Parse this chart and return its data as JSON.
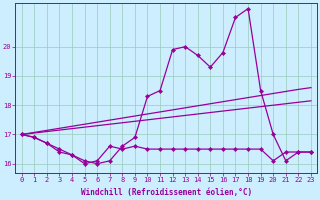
{
  "xlabel": "Windchill (Refroidissement éolien,°C)",
  "background_color": "#cceeff",
  "line_color": "#990099",
  "x": [
    0,
    1,
    2,
    3,
    4,
    5,
    6,
    7,
    8,
    9,
    10,
    11,
    12,
    13,
    14,
    15,
    16,
    17,
    18,
    19,
    20,
    21,
    22,
    23
  ],
  "line_main": [
    17.0,
    16.9,
    16.7,
    16.5,
    16.3,
    16.1,
    16.0,
    16.1,
    16.6,
    16.9,
    18.3,
    18.5,
    19.9,
    20.0,
    19.7,
    19.3,
    19.8,
    21.0,
    21.3,
    18.5,
    17.0,
    16.1,
    16.4,
    16.4
  ],
  "line_low": [
    17.0,
    16.9,
    16.7,
    16.4,
    16.3,
    16.0,
    16.1,
    16.6,
    16.5,
    16.6,
    16.5,
    16.5,
    16.5,
    16.5,
    16.5,
    16.5,
    16.5,
    16.5,
    16.5,
    16.5,
    16.1,
    16.4,
    16.4,
    16.4
  ],
  "line_trend1": [
    17.0,
    17.05,
    17.1,
    17.15,
    17.2,
    17.25,
    17.3,
    17.35,
    17.4,
    17.45,
    17.5,
    17.55,
    17.6,
    17.65,
    17.7,
    17.75,
    17.8,
    17.85,
    17.9,
    17.95,
    18.0,
    18.05,
    18.1,
    18.15
  ],
  "line_trend2": [
    17.0,
    17.07,
    17.14,
    17.21,
    17.28,
    17.35,
    17.42,
    17.49,
    17.56,
    17.63,
    17.7,
    17.77,
    17.84,
    17.91,
    17.98,
    18.05,
    18.12,
    18.19,
    18.26,
    18.33,
    18.4,
    18.47,
    18.54,
    18.6
  ],
  "ylim": [
    15.7,
    21.5
  ],
  "xlim": [
    -0.5,
    23.5
  ],
  "yticks": [
    16,
    17,
    18,
    19,
    20
  ],
  "xticks": [
    0,
    1,
    2,
    3,
    4,
    5,
    6,
    7,
    8,
    9,
    10,
    11,
    12,
    13,
    14,
    15,
    16,
    17,
    18,
    19,
    20,
    21,
    22,
    23
  ],
  "tick_fontsize": 5,
  "xlabel_fontsize": 5.5
}
